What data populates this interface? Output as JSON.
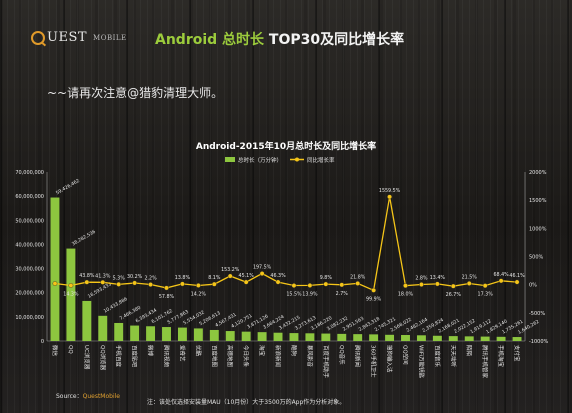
{
  "header": {
    "logo_uest": "UEST",
    "logo_mobile": "MOBILE",
    "title_green": "Android 总时长",
    "title_white": " TOP30及同比增长率"
  },
  "subtitle": "~~请再次注意@猎豹清理大师。",
  "footer": {
    "source_label": "Source：",
    "source_brand": "QuestMobile",
    "note": "注：该处仅选择安装量MAU（10月份）大于3500万的App作为分析对象。"
  },
  "colors": {
    "bar": "#8dc63f",
    "line": "#f5c518",
    "text": "#e6e6e6",
    "title": "#ffffff"
  },
  "chart_data": {
    "type": "bar",
    "title": "Android-2015年10月总时长及同比增长率",
    "legend_position": "top-center",
    "grid": false,
    "categories": [
      "微信",
      "QQ",
      "UC浏览器",
      "QQ浏览器",
      "手机百度",
      "百度贴吧",
      "微博",
      "腾讯视频",
      "爱奇艺",
      "优酷",
      "百度地图",
      "高德地图",
      "今日头条",
      "淘宝",
      "新浪新闻",
      "酷狗",
      "暴风影音",
      "百度手机助手",
      "QQ音乐",
      "腾讯新闻",
      "360手机卫士",
      "搜狗输入法",
      "QQ空间",
      "WiFi万能钥匙",
      "百度音乐",
      "天天动听",
      "陌陌",
      "腾讯手机管家",
      "手机淘宝",
      "支付宝"
    ],
    "series": [
      {
        "name": "总时长（万分钟）",
        "type": "bar",
        "axis": "left",
        "values": [
          59426462,
          38282536,
          16593433,
          10433886,
          7466380,
          6393434,
          6101762,
          5777863,
          5554032,
          5206613,
          4567431,
          4120751,
          3871126,
          3664224,
          3432215,
          3273613,
          3186220,
          3082232,
          2951563,
          2843318,
          2745321,
          2568022,
          2482164,
          2359824,
          2168021,
          2022152,
          1919112,
          1829140,
          1735261,
          1640262
        ],
        "labels": [
          "59,426,462",
          "38,282,536",
          "16,593,433",
          "10,433,886",
          "7,466,380",
          "6,393,434",
          "6,101,762",
          "5,777,863",
          "5,554,032",
          "5,206,613",
          "4,567,431",
          "4,120,751",
          "3,871,126",
          "3,664,224",
          "3,432,215",
          "3,273,613",
          "3,186,220",
          "3,082,232",
          "2,951,563",
          "2,843,318",
          "2,745,321",
          "2,568,022",
          "2,482,164",
          "2,359,824",
          "2,168,021",
          "2,022,152",
          "1,919,112",
          "1,829,140",
          "1,735,261",
          "1,640,262"
        ]
      },
      {
        "name": "同比增长率",
        "type": "line",
        "axis": "right",
        "values": [
          20,
          -14.3,
          43.8,
          41.3,
          5.3,
          30.2,
          2.2,
          -57.8,
          13.8,
          -14.2,
          8.1,
          153.2,
          45.1,
          197.5,
          46.3,
          -15.5,
          -13.9,
          9.8,
          -2.7,
          21.8,
          -99.9,
          1559.5,
          -18.0,
          2.8,
          13.4,
          -26.7,
          21.5,
          -17.3,
          68.4,
          46.1
        ],
        "labels": [
          "",
          "14.3%",
          "43.8%",
          "41.3%",
          "5.3%",
          "30.2%",
          "2.2%",
          "57.8%",
          "13.8%",
          "14.2%",
          "8.1%",
          "153.2%",
          "45.1%",
          "197.5%",
          "46.3%",
          "15.5%",
          "13.9%",
          "9.8%",
          "2.7%",
          "21.8%",
          "99.9%",
          "1559.5%",
          "18.0%",
          "2.8%",
          "13.4%",
          "26.7%",
          "21.5%",
          "17.3%",
          "68.4%",
          "46.1%"
        ]
      }
    ],
    "y_left": {
      "min": 0,
      "max": 70000000,
      "ticks": [
        0,
        10000000,
        20000000,
        30000000,
        40000000,
        50000000,
        60000000,
        70000000
      ],
      "tick_labels": [
        "0",
        "10,000,000",
        "20,000,000",
        "30,000,000",
        "40,000,000",
        "50,000,000",
        "60,000,000",
        "70,000,000"
      ]
    },
    "y_right": {
      "min": -1000,
      "max": 2000,
      "ticks": [
        -1000,
        -500,
        0,
        500,
        1000,
        1500,
        2000
      ],
      "tick_labels": [
        "-1000%",
        "-500%",
        "0%",
        "500%",
        "1000%",
        "1500%",
        "2000%"
      ]
    }
  }
}
